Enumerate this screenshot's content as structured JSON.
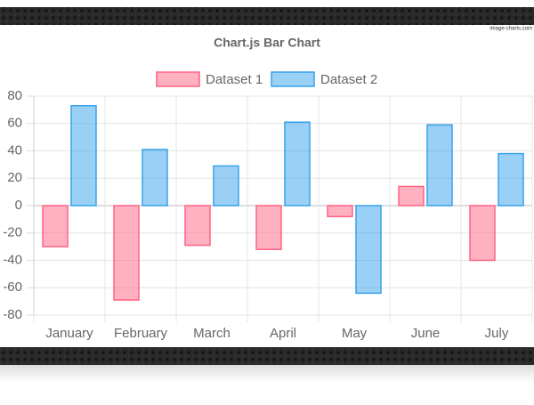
{
  "watermark": "image-charts.com",
  "chart_data": {
    "type": "bar",
    "title": "Chart.js Bar Chart",
    "categories": [
      "January",
      "February",
      "March",
      "April",
      "May",
      "June",
      "July"
    ],
    "series": [
      {
        "name": "Dataset 1",
        "color": "#ff6384",
        "values": [
          -30,
          -69,
          -29,
          -32,
          -8,
          14,
          -40
        ]
      },
      {
        "name": "Dataset 2",
        "color": "#36a2eb",
        "values": [
          73,
          41,
          29,
          61,
          -64,
          59,
          38
        ]
      }
    ],
    "ylim": [
      -80,
      80
    ],
    "yticks": [
      -80,
      -60,
      -40,
      -20,
      0,
      20,
      40,
      60,
      80
    ],
    "grid": true,
    "legend": "top"
  }
}
